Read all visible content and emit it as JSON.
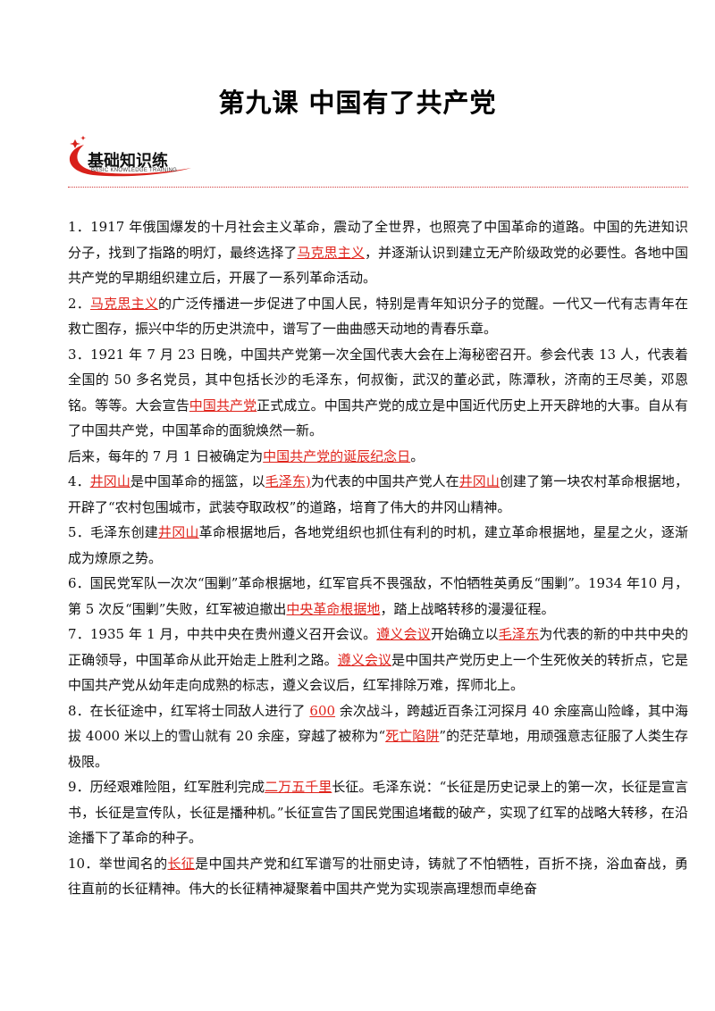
{
  "title": "第九课 中国有了共产党",
  "badge": {
    "label": "基础知识练",
    "sub": "BASIC KNOWLEDGE TRAINING"
  },
  "paragraphs": [
    {
      "segments": [
        {
          "t": "1．1917 年俄国爆发的十月社会主义革命，震动了全世界，也照亮了中国革命的道路。中国的先进知识分子，找到了指路的明灯，最终选择了"
        },
        {
          "t": "马克思主义",
          "key": true
        },
        {
          "t": "，并逐渐认识到建立无产阶级政党的必要性。各地中国共产党的早期组织建立后，开展了一系列革命活动。"
        }
      ]
    },
    {
      "segments": [
        {
          "t": "2．"
        },
        {
          "t": "马克思主义",
          "key": true
        },
        {
          "t": "的广泛传播进一步促进了中国人民，特别是青年知识分子的觉醒。一代又一代有志青年在救亡图存，振兴中华的历史洪流中，谱写了一曲曲感天动地的青春乐章。"
        }
      ]
    },
    {
      "segments": [
        {
          "t": "3．1921 年 7 月 23 日晚，中国共产党第一次全国代表大会在上海秘密召开。参会代表 13 人，代表着全国的 50 多名党员，其中包括长沙的毛泽东，何叔衡，武汉的董必武，陈潭秋，济南的王尽美，邓恩铭。等等。大会宣告"
        },
        {
          "t": "中国共产党",
          "key": true
        },
        {
          "t": "正式成立。中国共产党的成立是中国近代历史上开天辟地的大事。自从有了中国共产党，中国革命的面貌焕然一新。"
        }
      ]
    },
    {
      "segments": [
        {
          "t": "后来，每年的 7 月 1 日被确定为"
        },
        {
          "t": "中国共产党的诞辰纪念日",
          "key": true
        },
        {
          "t": "。"
        }
      ]
    },
    {
      "segments": [
        {
          "t": "4．"
        },
        {
          "t": "井冈山",
          "key": true
        },
        {
          "t": "是中国革命的摇篮，以"
        },
        {
          "t": "毛泽东)",
          "key": true
        },
        {
          "t": "为代表的中国共产党人在"
        },
        {
          "t": "井冈山",
          "key": true
        },
        {
          "t": "创建了第一块农村革命根据地，开辟了“农村包围城市，武装夺取政权”的道路，培育了伟大的井冈山精神。"
        }
      ]
    },
    {
      "segments": [
        {
          "t": "5．毛泽东创建"
        },
        {
          "t": "井冈山",
          "key": true
        },
        {
          "t": "革命根据地后，各地党组织也抓住有利的时机，建立革命根据地，星星之火，逐渐成为燎原之势。"
        }
      ]
    },
    {
      "segments": [
        {
          "t": "6．国民党军队一次次“围剿”革命根据地，红军官兵不畏强敌，不怕牺牲英勇反“围剿”。1934 年10 月，第 5 次反“围剿”失败，红军被迫撤出"
        },
        {
          "t": "中央革命根据地",
          "key": true
        },
        {
          "t": "，踏上战略转移的漫漫征程。"
        }
      ]
    },
    {
      "segments": [
        {
          "t": "7．1935 年 1 月，中共中央在贵州遵义召开会议。"
        },
        {
          "t": "遵义会议",
          "key": true
        },
        {
          "t": "开始确立以"
        },
        {
          "t": "毛泽东",
          "key": true
        },
        {
          "t": "为代表的新的中共中央的正确领导，中国革命从此开始走上胜利之路。"
        },
        {
          "t": "遵义会议",
          "key": true
        },
        {
          "t": "是中国共产党历史上一个生死攸关的转折点，它是中国共产党从幼年走向成熟的标志，遵义会议后，红军排除万难，挥师北上。"
        }
      ]
    },
    {
      "segments": [
        {
          "t": "8．在长征途中，红军将士同敌人进行了 "
        },
        {
          "t": "600",
          "key": true
        },
        {
          "t": " 余次战斗，跨越近百条江河探月 40 余座高山险峰，其中海拔 4000 米以上的雪山就有 20 余座，穿越了被称为“"
        },
        {
          "t": "死亡陷阱",
          "key": true
        },
        {
          "t": "”的茫茫草地，用顽强意志征服了人类生存极限。"
        }
      ]
    },
    {
      "segments": [
        {
          "t": "9．历经艰难险阻，红军胜利完成"
        },
        {
          "t": "二万五千里",
          "key": true
        },
        {
          "t": "长征。毛泽东说：“长征是历史记录上的第一次，长征是宣言书，长征是宣传队，长征是播种机。”长征宣告了国民党围追堵截的破产，实现了红军的战略大转移，在沿途播下了革命的种子。"
        }
      ]
    },
    {
      "segments": [
        {
          "t": "10．举世闻名的"
        },
        {
          "t": "长征",
          "key": true
        },
        {
          "t": "是中国共产党和红军谱写的壮丽史诗，铸就了不怕牺牲，百折不挠，浴血奋战，勇往直前的长征精神。伟大的长征精神凝聚着中国共产党为实现崇高理想而卓绝奋"
        }
      ]
    }
  ]
}
